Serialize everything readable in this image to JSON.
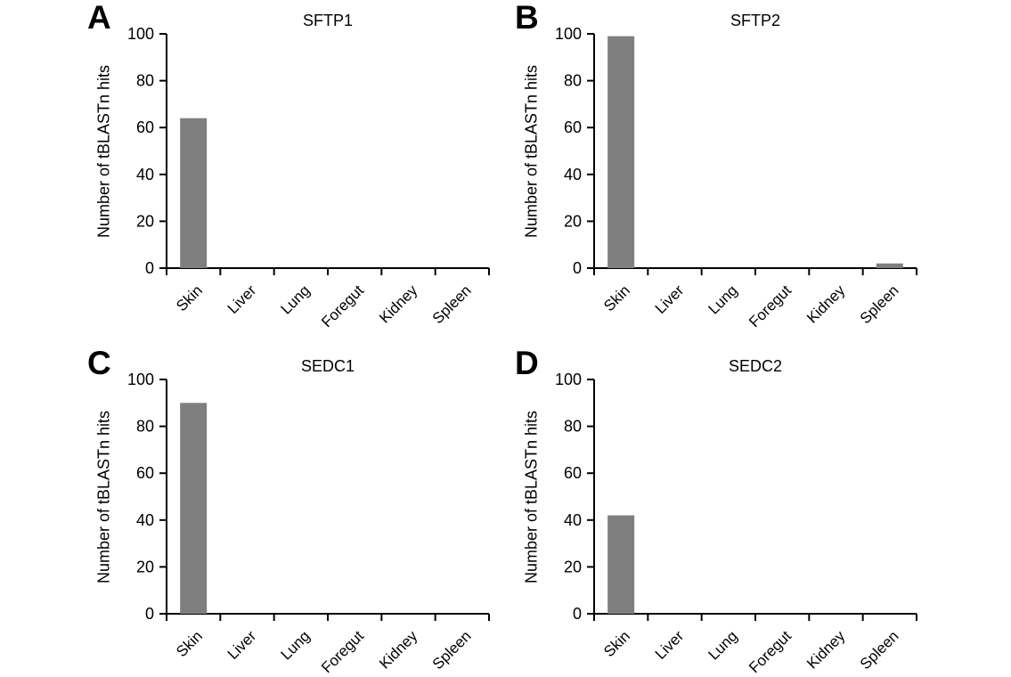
{
  "figure": {
    "background_color": "#ffffff",
    "bar_color": "#7f7f7f",
    "axis_color": "#000000",
    "text_color": "#000000"
  },
  "chart_data": [
    {
      "type": "bar",
      "panel_label": "A",
      "title": "SFTP1",
      "xlabel": "",
      "ylabel": "Number of tBLASTn hits",
      "categories": [
        "Skin",
        "Liver",
        "Lung",
        "Foregut",
        "Kidney",
        "Spleen"
      ],
      "values": [
        64,
        0,
        0,
        0,
        0,
        0
      ],
      "ylim": [
        0,
        100
      ],
      "ytick_step": 20,
      "ytick_labels": [
        "0",
        "20",
        "40",
        "60",
        "80",
        "100"
      ],
      "grid": false,
      "legend": "none",
      "x_label_rotation_deg": -45
    },
    {
      "type": "bar",
      "panel_label": "B",
      "title": "SFTP2",
      "xlabel": "",
      "ylabel": "Number of tBLASTn hits",
      "categories": [
        "Skin",
        "Liver",
        "Lung",
        "Foregut",
        "Kidney",
        "Spleen"
      ],
      "values": [
        99,
        0,
        0,
        0,
        0,
        2
      ],
      "ylim": [
        0,
        100
      ],
      "ytick_step": 20,
      "ytick_labels": [
        "0",
        "20",
        "40",
        "60",
        "80",
        "100"
      ],
      "grid": false,
      "legend": "none",
      "x_label_rotation_deg": -45
    },
    {
      "type": "bar",
      "panel_label": "C",
      "title": "SEDC1",
      "xlabel": "",
      "ylabel": "Number of tBLASTn hits",
      "categories": [
        "Skin",
        "Liver",
        "Lung",
        "Foregut",
        "Kidney",
        "Spleen"
      ],
      "values": [
        90,
        0,
        0,
        0,
        0,
        0
      ],
      "ylim": [
        0,
        100
      ],
      "ytick_step": 20,
      "ytick_labels": [
        "0",
        "20",
        "40",
        "60",
        "80",
        "100"
      ],
      "grid": false,
      "legend": "none",
      "x_label_rotation_deg": -45
    },
    {
      "type": "bar",
      "panel_label": "D",
      "title": "SEDC2",
      "xlabel": "",
      "ylabel": "Number of tBLASTn hits",
      "categories": [
        "Skin",
        "Liver",
        "Lung",
        "Foregut",
        "Kidney",
        "Spleen"
      ],
      "values": [
        42,
        0,
        0,
        0,
        0,
        0
      ],
      "ylim": [
        0,
        100
      ],
      "ytick_step": 20,
      "ytick_labels": [
        "0",
        "20",
        "40",
        "60",
        "80",
        "100"
      ],
      "grid": false,
      "legend": "none",
      "x_label_rotation_deg": -45
    }
  ]
}
